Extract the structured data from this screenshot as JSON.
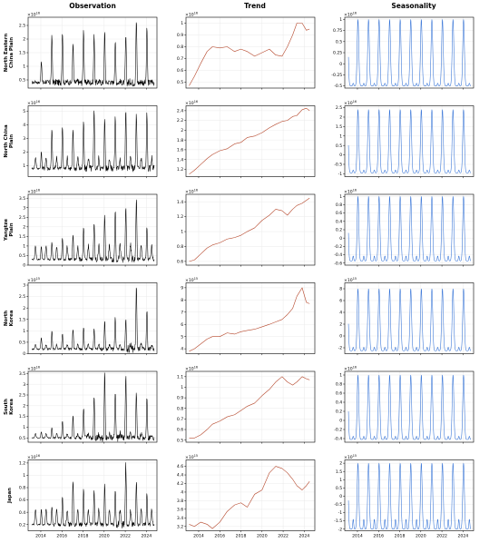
{
  "figure": {
    "columns": [
      "Observation",
      "Trend",
      "Seasonality"
    ],
    "x_ticks": [
      "2014",
      "2016",
      "2018",
      "2020",
      "2022",
      "2024"
    ]
  },
  "chart_data": [
    {
      "region": "North Eastern China Plain",
      "region_lines": [
        "North Eastern",
        "China Plain"
      ],
      "observation": {
        "multiplier": "×10^16",
        "yticks": [
          0.5,
          1.0,
          1.5,
          2.0,
          2.5
        ],
        "ylim": [
          0.2,
          2.8
        ],
        "base": 0.4,
        "peaks": [
          1.2,
          2.1,
          2.3,
          1.85,
          2.35,
          2.15,
          2.25,
          1.9,
          2.1,
          2.7,
          2.35
        ],
        "secondary": 0.45
      },
      "trend": {
        "multiplier": "×10^16",
        "yticks": [
          0.5,
          0.6,
          0.7,
          0.8,
          0.9,
          1.0
        ],
        "ylim": [
          0.45,
          1.05
        ],
        "points": [
          [
            2013.1,
            0.47
          ],
          [
            2013.6,
            0.55
          ],
          [
            2014.2,
            0.66
          ],
          [
            2014.8,
            0.76
          ],
          [
            2015.3,
            0.8
          ],
          [
            2016.0,
            0.79
          ],
          [
            2016.7,
            0.8
          ],
          [
            2017.4,
            0.76
          ],
          [
            2018.0,
            0.78
          ],
          [
            2018.6,
            0.76
          ],
          [
            2019.3,
            0.72
          ],
          [
            2020.0,
            0.75
          ],
          [
            2020.7,
            0.78
          ],
          [
            2021.3,
            0.73
          ],
          [
            2021.9,
            0.72
          ],
          [
            2022.4,
            0.8
          ],
          [
            2022.9,
            0.9
          ],
          [
            2023.3,
            1.0
          ],
          [
            2023.8,
            1.0
          ],
          [
            2024.2,
            0.94
          ],
          [
            2024.5,
            0.95
          ]
        ]
      },
      "seasonality": {
        "multiplier": "×10^16",
        "yticks": [
          -0.5,
          -0.25,
          0.0,
          0.25,
          0.5,
          0.75,
          1.0
        ],
        "ylim": [
          -0.55,
          1.05
        ],
        "max": 1.0,
        "min": -0.5,
        "dip": -0.4
      }
    },
    {
      "region": "North China Plain",
      "region_lines": [
        "North China",
        "Plain"
      ],
      "observation": {
        "multiplier": "×10^16",
        "yticks": [
          1,
          2,
          3,
          4,
          5
        ],
        "ylim": [
          0.2,
          5.4
        ],
        "base": 0.8,
        "peaks": [
          2.0,
          3.6,
          3.9,
          3.6,
          4.2,
          5.2,
          4.4,
          4.6,
          5.0,
          4.8,
          4.9
        ],
        "secondary": 1.6
      },
      "trend": {
        "multiplier": "×10^16",
        "yticks": [
          1.2,
          1.4,
          1.6,
          1.8,
          2.0,
          2.2,
          2.4
        ],
        "ylim": [
          1.05,
          2.5
        ],
        "points": [
          [
            2013.1,
            1.1
          ],
          [
            2013.6,
            1.18
          ],
          [
            2014.2,
            1.3
          ],
          [
            2014.8,
            1.42
          ],
          [
            2015.3,
            1.5
          ],
          [
            2016.0,
            1.58
          ],
          [
            2016.7,
            1.62
          ],
          [
            2017.4,
            1.72
          ],
          [
            2018.0,
            1.75
          ],
          [
            2018.6,
            1.85
          ],
          [
            2019.3,
            1.88
          ],
          [
            2020.0,
            1.95
          ],
          [
            2020.7,
            2.05
          ],
          [
            2021.3,
            2.12
          ],
          [
            2021.9,
            2.18
          ],
          [
            2022.4,
            2.2
          ],
          [
            2022.9,
            2.28
          ],
          [
            2023.3,
            2.3
          ],
          [
            2023.8,
            2.42
          ],
          [
            2024.2,
            2.45
          ],
          [
            2024.5,
            2.4
          ]
        ]
      },
      "seasonality": {
        "multiplier": "×10^16",
        "yticks": [
          -1.0,
          -0.5,
          0.0,
          0.5,
          1.0,
          1.5,
          2.0,
          2.5
        ],
        "ylim": [
          -1.15,
          2.6
        ],
        "max": 2.4,
        "min": -0.95,
        "dip": -0.7
      }
    },
    {
      "region": "Yangtze Plain",
      "region_lines": [
        "Yangtze",
        "Plain"
      ],
      "observation": {
        "multiplier": "×10^16",
        "yticks": [
          0.0,
          0.5,
          1.0,
          1.5,
          2.0,
          2.5,
          3.0,
          3.5
        ],
        "ylim": [
          0.0,
          3.7
        ],
        "base": 0.3,
        "peaks": [
          1.0,
          1.2,
          1.4,
          1.6,
          1.9,
          2.3,
          2.6,
          2.9,
          3.0,
          3.5,
          2.0
        ],
        "secondary": 1.0
      },
      "trend": {
        "multiplier": "×10^16",
        "yticks": [
          0.6,
          0.8,
          1.0,
          1.2,
          1.4
        ],
        "ylim": [
          0.55,
          1.5
        ],
        "points": [
          [
            2013.1,
            0.6
          ],
          [
            2013.6,
            0.62
          ],
          [
            2014.2,
            0.7
          ],
          [
            2014.8,
            0.78
          ],
          [
            2015.3,
            0.82
          ],
          [
            2016.0,
            0.85
          ],
          [
            2016.7,
            0.9
          ],
          [
            2017.4,
            0.92
          ],
          [
            2018.0,
            0.95
          ],
          [
            2018.6,
            1.0
          ],
          [
            2019.3,
            1.05
          ],
          [
            2020.0,
            1.15
          ],
          [
            2020.7,
            1.22
          ],
          [
            2021.3,
            1.3
          ],
          [
            2021.9,
            1.28
          ],
          [
            2022.4,
            1.22
          ],
          [
            2022.9,
            1.3
          ],
          [
            2023.3,
            1.35
          ],
          [
            2023.8,
            1.38
          ],
          [
            2024.2,
            1.42
          ],
          [
            2024.5,
            1.45
          ]
        ]
      },
      "seasonality": {
        "multiplier": "×10^16",
        "yticks": [
          -0.6,
          -0.4,
          -0.2,
          0.0,
          0.2,
          0.4,
          0.6,
          0.8,
          1.0
        ],
        "ylim": [
          -0.65,
          1.05
        ],
        "max": 1.0,
        "min": -0.55,
        "dip": -0.35
      }
    },
    {
      "region": "North Korea",
      "region_lines": [
        "North",
        "Korea"
      ],
      "observation": {
        "multiplier": "×10^15",
        "yticks": [
          0.0,
          0.5,
          1.0,
          1.5,
          2.0,
          2.5,
          3.0
        ],
        "ylim": [
          0.0,
          3.1
        ],
        "base": 0.2,
        "peaks": [
          0.7,
          1.0,
          0.9,
          1.1,
          1.2,
          1.1,
          1.4,
          1.6,
          1.5,
          3.0,
          1.9
        ],
        "secondary": 0.4
      },
      "trend": {
        "multiplier": "×10^15",
        "yticks": [
          4,
          5,
          6,
          7,
          8,
          9
        ],
        "ylim": [
          3.6,
          9.4
        ],
        "points": [
          [
            2013.1,
            3.8
          ],
          [
            2013.6,
            4.0
          ],
          [
            2014.2,
            4.4
          ],
          [
            2014.8,
            4.8
          ],
          [
            2015.3,
            5.0
          ],
          [
            2016.0,
            5.0
          ],
          [
            2016.7,
            5.3
          ],
          [
            2017.4,
            5.2
          ],
          [
            2018.0,
            5.4
          ],
          [
            2018.6,
            5.5
          ],
          [
            2019.3,
            5.6
          ],
          [
            2020.0,
            5.8
          ],
          [
            2020.7,
            6.0
          ],
          [
            2021.3,
            6.2
          ],
          [
            2021.9,
            6.4
          ],
          [
            2022.4,
            6.8
          ],
          [
            2022.9,
            7.3
          ],
          [
            2023.3,
            8.3
          ],
          [
            2023.8,
            9.0
          ],
          [
            2024.2,
            7.8
          ],
          [
            2024.5,
            7.7
          ]
        ]
      },
      "seasonality": {
        "multiplier": "×10^15",
        "yticks": [
          -2,
          0,
          2,
          4,
          6,
          8
        ],
        "ylim": [
          -3,
          9
        ],
        "max": 8.0,
        "min": -2.5,
        "dip": -1.5
      }
    },
    {
      "region": "South Korea",
      "region_lines": [
        "South",
        "Korea"
      ],
      "observation": {
        "multiplier": "×10^16",
        "yticks": [
          0.5,
          1.0,
          1.5,
          2.0,
          2.5,
          3.0,
          3.5
        ],
        "ylim": [
          0.3,
          3.6
        ],
        "base": 0.5,
        "peaks": [
          0.8,
          1.0,
          1.3,
          1.5,
          1.9,
          2.5,
          3.5,
          2.7,
          3.4,
          2.6,
          2.5
        ],
        "secondary": 0.7
      },
      "trend": {
        "multiplier": "×10^16",
        "yticks": [
          0.5,
          0.6,
          0.7,
          0.8,
          0.9,
          1.0,
          1.1
        ],
        "ylim": [
          0.48,
          1.15
        ],
        "points": [
          [
            2013.1,
            0.52
          ],
          [
            2013.6,
            0.52
          ],
          [
            2014.2,
            0.55
          ],
          [
            2014.8,
            0.6
          ],
          [
            2015.3,
            0.65
          ],
          [
            2016.0,
            0.68
          ],
          [
            2016.7,
            0.72
          ],
          [
            2017.4,
            0.74
          ],
          [
            2018.0,
            0.78
          ],
          [
            2018.6,
            0.82
          ],
          [
            2019.3,
            0.85
          ],
          [
            2020.0,
            0.92
          ],
          [
            2020.7,
            0.98
          ],
          [
            2021.3,
            1.05
          ],
          [
            2021.9,
            1.1
          ],
          [
            2022.4,
            1.05
          ],
          [
            2022.9,
            1.02
          ],
          [
            2023.3,
            1.05
          ],
          [
            2023.8,
            1.1
          ],
          [
            2024.2,
            1.08
          ],
          [
            2024.5,
            1.07
          ]
        ]
      },
      "seasonality": {
        "multiplier": "×10^16",
        "yticks": [
          -0.4,
          -0.2,
          0.0,
          0.2,
          0.4,
          0.6,
          0.8,
          1.0
        ],
        "ylim": [
          -0.48,
          1.08
        ],
        "max": 1.0,
        "min": -0.42,
        "dip": -0.3
      }
    },
    {
      "region": "Japan",
      "region_lines": [
        "Japan"
      ],
      "observation": {
        "multiplier": "×10^16",
        "yticks": [
          0.2,
          0.4,
          0.6,
          0.8,
          1.0,
          1.2
        ],
        "ylim": [
          0.1,
          1.25
        ],
        "base": 0.2,
        "peaks": [
          0.45,
          0.5,
          0.65,
          0.9,
          0.8,
          0.75,
          0.85,
          0.75,
          1.18,
          0.9,
          0.7
        ],
        "secondary": 0.45
      },
      "trend": {
        "multiplier": "×10^15",
        "yticks": [
          3.2,
          3.4,
          3.6,
          3.8,
          4.0,
          4.2,
          4.4,
          4.6
        ],
        "ylim": [
          3.1,
          4.75
        ],
        "points": [
          [
            2013.1,
            3.25
          ],
          [
            2013.6,
            3.2
          ],
          [
            2014.2,
            3.3
          ],
          [
            2014.8,
            3.25
          ],
          [
            2015.3,
            3.15
          ],
          [
            2016.0,
            3.3
          ],
          [
            2016.7,
            3.55
          ],
          [
            2017.4,
            3.7
          ],
          [
            2018.0,
            3.75
          ],
          [
            2018.6,
            3.65
          ],
          [
            2019.3,
            3.95
          ],
          [
            2020.0,
            4.05
          ],
          [
            2020.7,
            4.45
          ],
          [
            2021.3,
            4.6
          ],
          [
            2021.9,
            4.55
          ],
          [
            2022.4,
            4.45
          ],
          [
            2022.9,
            4.3
          ],
          [
            2023.3,
            4.15
          ],
          [
            2023.8,
            4.05
          ],
          [
            2024.2,
            4.15
          ],
          [
            2024.5,
            4.25
          ]
        ]
      },
      "seasonality": {
        "multiplier": "×10^15",
        "yticks": [
          -2.0,
          -1.5,
          -1.0,
          -0.5,
          0.0,
          0.5,
          1.0,
          1.5,
          2.0
        ],
        "ylim": [
          -2.1,
          2.2
        ],
        "max": 2.0,
        "min": -2.0,
        "dip": -1.0
      }
    }
  ]
}
